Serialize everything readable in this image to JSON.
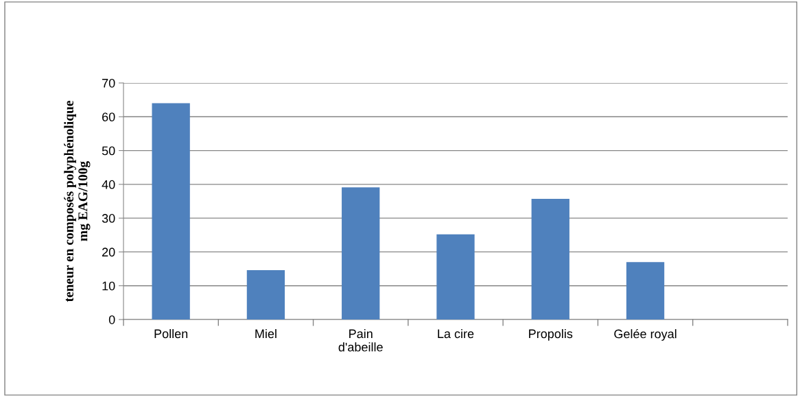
{
  "chart_data": {
    "type": "bar",
    "ylabel": "teneur en composés polyphénolique\nmg EAG/100g",
    "categories": [
      "Pollen",
      "Miel",
      "Pain\nd'abeille",
      "La cire",
      "Propolis",
      "Gelée royal",
      null
    ],
    "values": [
      64,
      14.6,
      39.1,
      25.2,
      35.7,
      17.0,
      null
    ],
    "color": "#4f81bd",
    "ylim": [
      0,
      70
    ],
    "yticks": [
      0,
      10,
      20,
      30,
      40,
      50,
      60,
      70
    ],
    "grid": "y",
    "legend": false
  }
}
